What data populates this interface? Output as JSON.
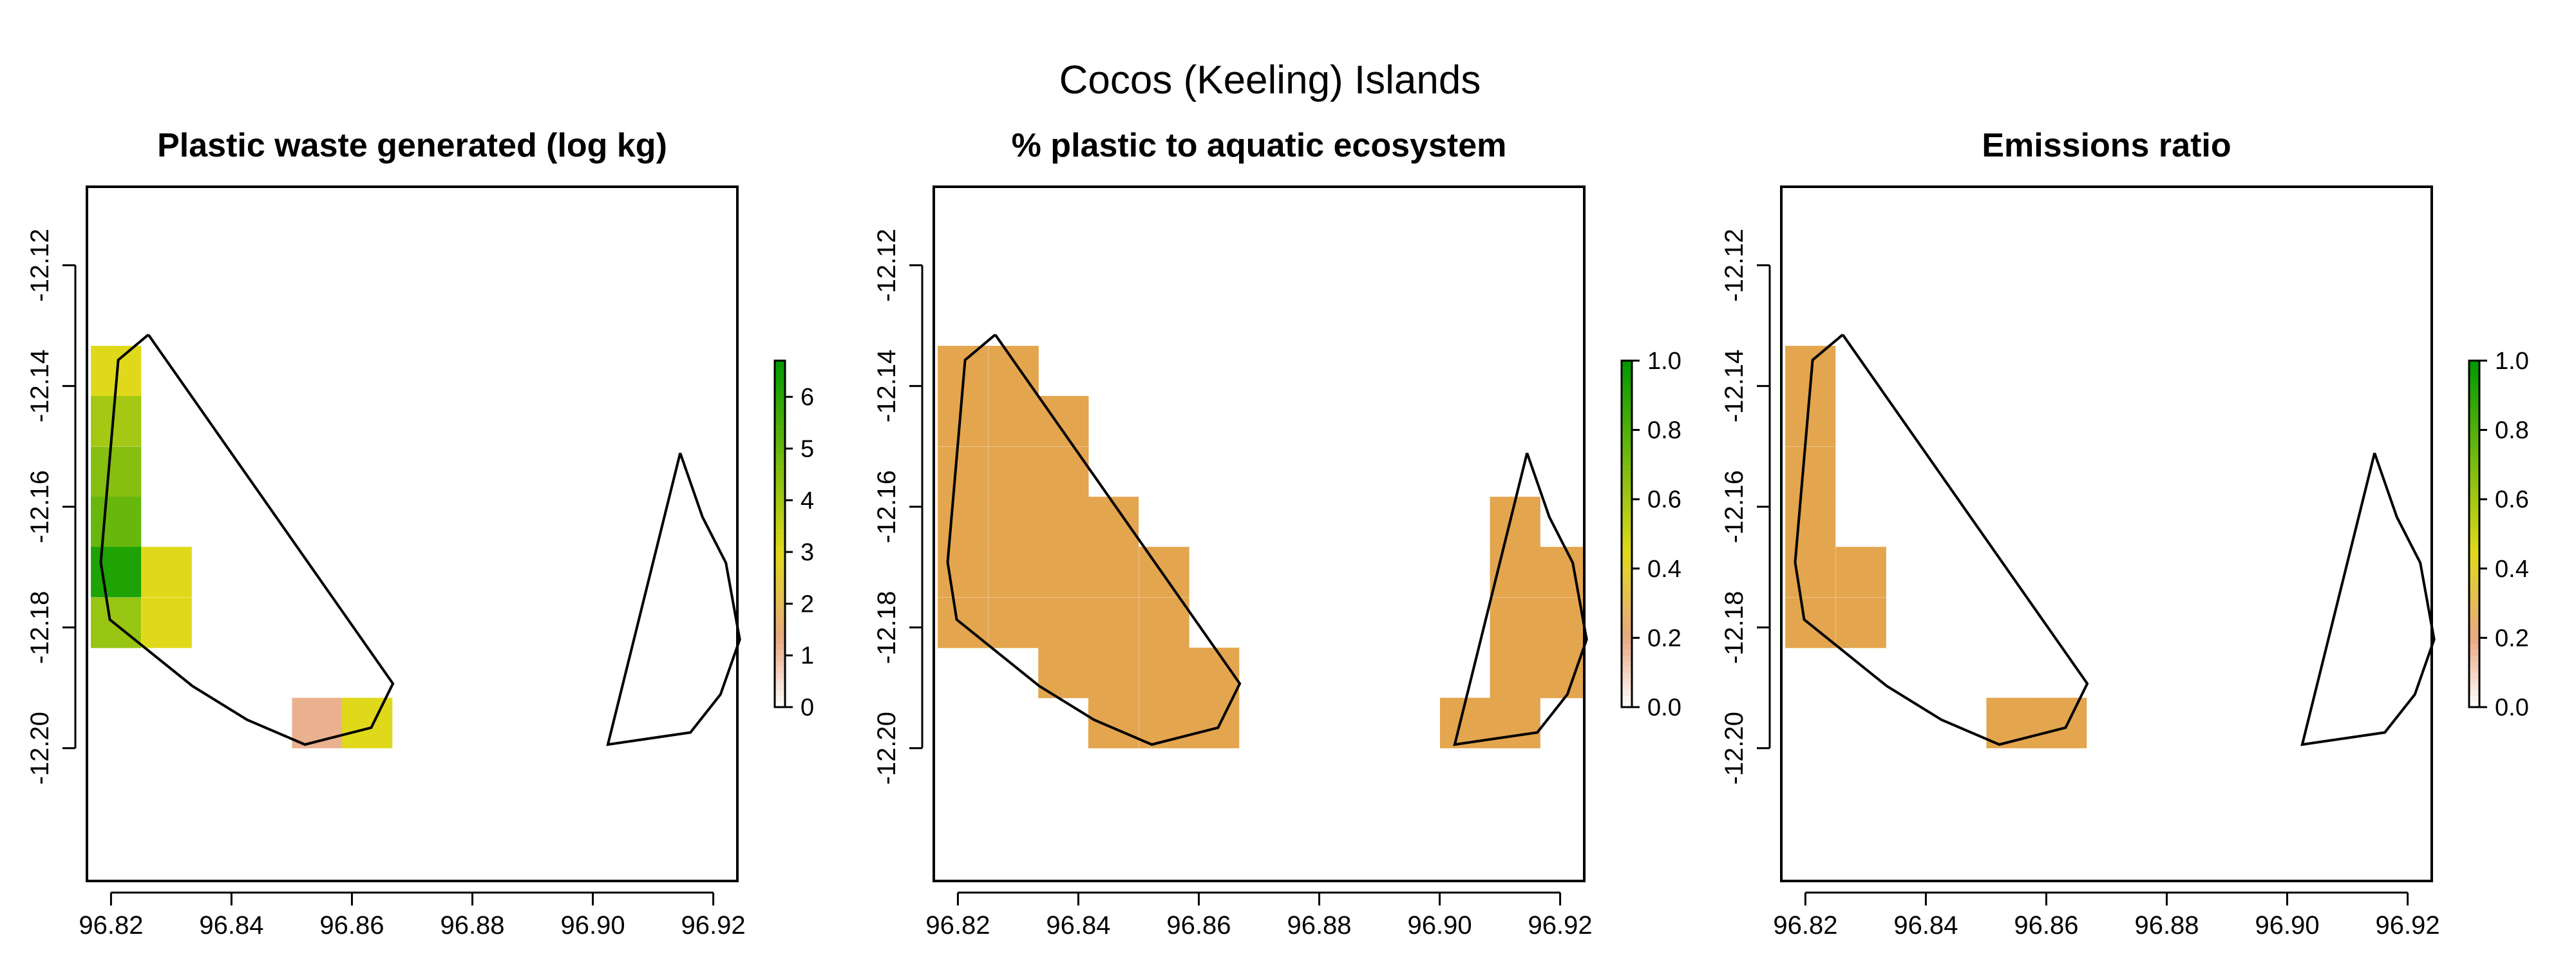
{
  "figure": {
    "title": "Cocos (Keeling) Islands",
    "background": "#ffffff"
  },
  "chart_data": [
    {
      "type": "heatmap",
      "title": "Plastic waste generated (log kg)",
      "xlim": [
        96.816,
        96.924
      ],
      "ylim": [
        -12.222,
        -12.107
      ],
      "x_ticks": [
        "96.82",
        "96.84",
        "96.86",
        "96.88",
        "96.90",
        "96.92"
      ],
      "y_ticks": [
        "-12.12",
        "-12.14",
        "-12.16",
        "-12.18",
        "-12.20"
      ],
      "cell_width_deg": 0.0083,
      "cell_height_deg": 0.0083,
      "cells": [
        {
          "x": 96.8208,
          "y": -12.1375,
          "value": 3.0
        },
        {
          "x": 96.8208,
          "y": -12.1458,
          "value": 4.0
        },
        {
          "x": 96.8208,
          "y": -12.1542,
          "value": 4.5
        },
        {
          "x": 96.8208,
          "y": -12.1625,
          "value": 5.0
        },
        {
          "x": 96.8208,
          "y": -12.1708,
          "value": 6.2
        },
        {
          "x": 96.8208,
          "y": -12.1792,
          "value": 4.2
        },
        {
          "x": 96.8292,
          "y": -12.1708,
          "value": 3.0
        },
        {
          "x": 96.8292,
          "y": -12.1792,
          "value": 3.0
        },
        {
          "x": 96.8542,
          "y": -12.1958,
          "value": 1.2
        },
        {
          "x": 96.8625,
          "y": -12.1958,
          "value": 3.0
        }
      ],
      "legend": {
        "range": [
          0,
          6.7
        ],
        "ticks": [
          "0",
          "1",
          "2",
          "3",
          "4",
          "5",
          "6"
        ]
      },
      "colors": {
        "low": "#ffffff",
        "mid_low": "#e8a882",
        "mid": "#e0d91a",
        "high": "#009900",
        "cell_mid": "#e3a54e"
      },
      "legend_placement": "right"
    },
    {
      "type": "heatmap",
      "title": "% plastic to aquatic ecosystem",
      "xlim": [
        96.816,
        96.924
      ],
      "ylim": [
        -12.222,
        -12.107
      ],
      "x_ticks": [
        "96.82",
        "96.84",
        "96.86",
        "96.88",
        "96.90",
        "96.92"
      ],
      "y_ticks": [
        "-12.12",
        "-12.14",
        "-12.16",
        "-12.18",
        "-12.20"
      ],
      "cell_width_deg": 0.0083,
      "cell_height_deg": 0.0083,
      "cells": [
        {
          "x": 96.8208,
          "y": -12.1375,
          "value": 0.35
        },
        {
          "x": 96.8292,
          "y": -12.1375,
          "value": 0.35
        },
        {
          "x": 96.8208,
          "y": -12.1458,
          "value": 0.35
        },
        {
          "x": 96.8292,
          "y": -12.1458,
          "value": 0.35
        },
        {
          "x": 96.8375,
          "y": -12.1458,
          "value": 0.35
        },
        {
          "x": 96.8208,
          "y": -12.1542,
          "value": 0.35
        },
        {
          "x": 96.8292,
          "y": -12.1542,
          "value": 0.35
        },
        {
          "x": 96.8375,
          "y": -12.1542,
          "value": 0.35
        },
        {
          "x": 96.8208,
          "y": -12.1625,
          "value": 0.35
        },
        {
          "x": 96.8292,
          "y": -12.1625,
          "value": 0.35
        },
        {
          "x": 96.8375,
          "y": -12.1625,
          "value": 0.35
        },
        {
          "x": 96.8458,
          "y": -12.1625,
          "value": 0.35
        },
        {
          "x": 96.8208,
          "y": -12.1708,
          "value": 0.35
        },
        {
          "x": 96.8292,
          "y": -12.1708,
          "value": 0.35
        },
        {
          "x": 96.8375,
          "y": -12.1708,
          "value": 0.35
        },
        {
          "x": 96.8458,
          "y": -12.1708,
          "value": 0.35
        },
        {
          "x": 96.8542,
          "y": -12.1708,
          "value": 0.35
        },
        {
          "x": 96.8208,
          "y": -12.1792,
          "value": 0.35
        },
        {
          "x": 96.8292,
          "y": -12.1792,
          "value": 0.35
        },
        {
          "x": 96.8375,
          "y": -12.1792,
          "value": 0.35
        },
        {
          "x": 96.8458,
          "y": -12.1792,
          "value": 0.35
        },
        {
          "x": 96.8542,
          "y": -12.1792,
          "value": 0.35
        },
        {
          "x": 96.8375,
          "y": -12.1875,
          "value": 0.35
        },
        {
          "x": 96.8458,
          "y": -12.1875,
          "value": 0.35
        },
        {
          "x": 96.8542,
          "y": -12.1875,
          "value": 0.35
        },
        {
          "x": 96.8625,
          "y": -12.1875,
          "value": 0.35
        },
        {
          "x": 96.8458,
          "y": -12.1958,
          "value": 0.35
        },
        {
          "x": 96.8542,
          "y": -12.1958,
          "value": 0.35
        },
        {
          "x": 96.8625,
          "y": -12.1958,
          "value": 0.35
        },
        {
          "x": 96.9125,
          "y": -12.1625,
          "value": 0.35
        },
        {
          "x": 96.9125,
          "y": -12.1708,
          "value": 0.35
        },
        {
          "x": 96.9208,
          "y": -12.1708,
          "value": 0.35
        },
        {
          "x": 96.9125,
          "y": -12.1792,
          "value": 0.35
        },
        {
          "x": 96.9208,
          "y": -12.1792,
          "value": 0.35
        },
        {
          "x": 96.9125,
          "y": -12.1875,
          "value": 0.35
        },
        {
          "x": 96.9208,
          "y": -12.1875,
          "value": 0.35
        },
        {
          "x": 96.9042,
          "y": -12.1958,
          "value": 0.35
        },
        {
          "x": 96.9125,
          "y": -12.1958,
          "value": 0.35
        }
      ],
      "legend": {
        "range": [
          0,
          1
        ],
        "ticks": [
          "0.0",
          "0.2",
          "0.4",
          "0.6",
          "0.8",
          "1.0"
        ]
      },
      "colors": {
        "low": "#ffffff",
        "mid_low": "#e8a882",
        "mid": "#e0d91a",
        "high": "#009900",
        "cell_mid": "#e3a54e"
      },
      "legend_placement": "right"
    },
    {
      "type": "heatmap",
      "title": "Emissions ratio",
      "xlim": [
        96.816,
        96.924
      ],
      "ylim": [
        -12.222,
        -12.107
      ],
      "x_ticks": [
        "96.82",
        "96.84",
        "96.86",
        "96.88",
        "96.90",
        "96.92"
      ],
      "y_ticks": [
        "-12.12",
        "-12.14",
        "-12.16",
        "-12.18",
        "-12.20"
      ],
      "cell_width_deg": 0.0083,
      "cell_height_deg": 0.0083,
      "cells": [
        {
          "x": 96.8208,
          "y": -12.1375,
          "value": 0.35
        },
        {
          "x": 96.8208,
          "y": -12.1458,
          "value": 0.35
        },
        {
          "x": 96.8208,
          "y": -12.1542,
          "value": 0.35
        },
        {
          "x": 96.8208,
          "y": -12.1625,
          "value": 0.35
        },
        {
          "x": 96.8208,
          "y": -12.1708,
          "value": 0.35
        },
        {
          "x": 96.8292,
          "y": -12.1708,
          "value": 0.35
        },
        {
          "x": 96.8208,
          "y": -12.1792,
          "value": 0.35
        },
        {
          "x": 96.8292,
          "y": -12.1792,
          "value": 0.35
        },
        {
          "x": 96.8542,
          "y": -12.1958,
          "value": 0.35
        },
        {
          "x": 96.8625,
          "y": -12.1958,
          "value": 0.35
        }
      ],
      "legend": {
        "range": [
          0,
          1
        ],
        "ticks": [
          "0.0",
          "0.2",
          "0.4",
          "0.6",
          "0.8",
          "1.0"
        ]
      },
      "colors": {
        "low": "#ffffff",
        "mid_low": "#e8a882",
        "mid": "#e0d91a",
        "high": "#009900",
        "cell_mid": "#e3a54e"
      },
      "legend_placement": "right"
    }
  ],
  "outlines": [
    {
      "name": "west atoll",
      "points": [
        [
          96.8262,
          -12.1315
        ],
        [
          96.8668,
          -12.1893
        ],
        [
          96.8632,
          -12.1966
        ],
        [
          96.8522,
          -12.1994
        ],
        [
          96.8426,
          -12.1953
        ],
        [
          96.8335,
          -12.1897
        ],
        [
          96.8198,
          -12.1787
        ],
        [
          96.8183,
          -12.1692
        ],
        [
          96.8212,
          -12.1357
        ],
        [
          96.8262,
          -12.1315
        ]
      ]
    },
    {
      "name": "east atoll",
      "points": [
        [
          96.9145,
          -12.1511
        ],
        [
          96.9182,
          -12.1617
        ],
        [
          96.9221,
          -12.1693
        ],
        [
          96.9244,
          -12.182
        ],
        [
          96.9212,
          -12.1911
        ],
        [
          96.9162,
          -12.1974
        ],
        [
          96.9025,
          -12.1994
        ],
        [
          96.9145,
          -12.1511
        ]
      ]
    }
  ]
}
